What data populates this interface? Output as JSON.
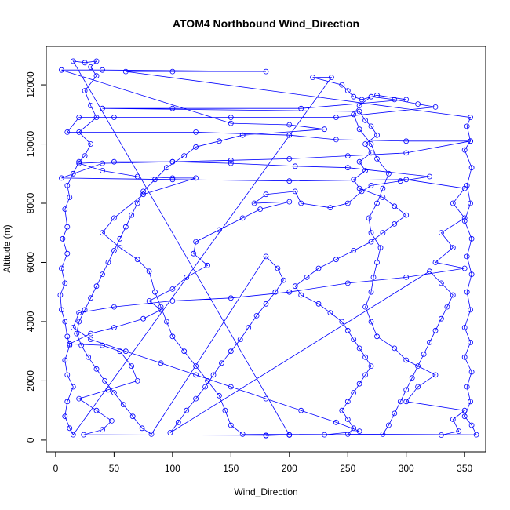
{
  "chart_data": {
    "type": "scatter",
    "title": "ATOM4 Northbound Wind_Direction",
    "xlabel": "Wind_Direction",
    "ylabel": "Altitude (m)",
    "xlim": [
      -8,
      368
    ],
    "ylim": [
      -400,
      13300
    ],
    "x_ticks": [
      0,
      50,
      100,
      150,
      200,
      250,
      300,
      350
    ],
    "y_ticks": [
      0,
      2000,
      4000,
      6000,
      8000,
      10000,
      12000
    ],
    "grid": false,
    "legend": "none",
    "series": [
      {
        "color": "#0000ff",
        "marker": "open-circle",
        "connected": true,
        "trajectory": [
          [
            180,
            150
          ],
          [
            200,
            180
          ],
          [
            180,
            160
          ],
          [
            24,
            180
          ],
          [
            40,
            350
          ],
          [
            48,
            650
          ],
          [
            35,
            1000
          ],
          [
            20,
            1400
          ],
          [
            45,
            1700
          ],
          [
            70,
            2000
          ],
          [
            65,
            2500
          ],
          [
            55,
            3000
          ],
          [
            40,
            3200
          ],
          [
            12,
            3250
          ],
          [
            30,
            3600
          ],
          [
            50,
            3800
          ],
          [
            75,
            4100
          ],
          [
            90,
            4400
          ],
          [
            80,
            4700
          ],
          [
            100,
            5100
          ],
          [
            112,
            5500
          ],
          [
            130,
            5900
          ],
          [
            118,
            6300
          ],
          [
            120,
            6700
          ],
          [
            140,
            7100
          ],
          [
            160,
            7500
          ],
          [
            175,
            7800
          ],
          [
            200,
            8050
          ],
          [
            170,
            8000
          ],
          [
            180,
            8300
          ],
          [
            205,
            8400
          ],
          [
            210,
            8000
          ],
          [
            235,
            7850
          ],
          [
            250,
            8000
          ],
          [
            262,
            8400
          ],
          [
            270,
            8600
          ],
          [
            295,
            8750
          ],
          [
            320,
            8900
          ],
          [
            250,
            9200
          ],
          [
            205,
            9250
          ],
          [
            150,
            9350
          ],
          [
            100,
            9400
          ],
          [
            50,
            9400
          ],
          [
            20,
            9350
          ],
          [
            40,
            9100
          ],
          [
            70,
            8900
          ],
          [
            100,
            8850
          ],
          [
            120,
            8850
          ],
          [
            75,
            8300
          ],
          [
            50,
            7500
          ],
          [
            40,
            7000
          ],
          [
            55,
            6500
          ],
          [
            70,
            6100
          ],
          [
            80,
            5700
          ],
          [
            85,
            5000
          ],
          [
            90,
            4500
          ],
          [
            95,
            4000
          ],
          [
            100,
            3500
          ],
          [
            110,
            3000
          ],
          [
            120,
            2500
          ],
          [
            130,
            2000
          ],
          [
            140,
            1500
          ],
          [
            145,
            1000
          ],
          [
            150,
            500
          ],
          [
            160,
            200
          ],
          [
            330,
            170
          ],
          [
            345,
            300
          ],
          [
            340,
            700
          ],
          [
            350,
            1000
          ],
          [
            300,
            1300
          ],
          [
            310,
            1800
          ],
          [
            325,
            2200
          ],
          [
            300,
            2700
          ],
          [
            290,
            3100
          ],
          [
            275,
            3500
          ],
          [
            270,
            4000
          ],
          [
            265,
            4500
          ],
          [
            270,
            5000
          ],
          [
            272,
            5500
          ],
          [
            275,
            6000
          ],
          [
            278,
            6500
          ],
          [
            270,
            7000
          ],
          [
            268,
            7500
          ],
          [
            275,
            8000
          ],
          [
            280,
            8500
          ],
          [
            285,
            9000
          ],
          [
            275,
            9500
          ],
          [
            270,
            10000
          ],
          [
            260,
            10500
          ],
          [
            255,
            11000
          ],
          [
            260,
            11300
          ],
          [
            270,
            11600
          ],
          [
            290,
            11500
          ],
          [
            310,
            11350
          ],
          [
            325,
            11250
          ],
          [
            240,
            10900
          ],
          [
            150,
            10900
          ],
          [
            50,
            10900
          ],
          [
            20,
            10900
          ],
          [
            10,
            10400
          ],
          [
            120,
            10400
          ],
          [
            200,
            10300
          ],
          [
            240,
            10150
          ],
          [
            300,
            10100
          ],
          [
            355,
            10100
          ],
          [
            300,
            9700
          ],
          [
            250,
            9600
          ],
          [
            200,
            9500
          ],
          [
            150,
            9450
          ],
          [
            100,
            9400
          ],
          [
            40,
            9350
          ],
          [
            5,
            8850
          ],
          [
            100,
            8800
          ],
          [
            200,
            8750
          ],
          [
            300,
            8800
          ],
          [
            350,
            8500
          ],
          [
            340,
            8000
          ],
          [
            350,
            7500
          ],
          [
            330,
            7000
          ],
          [
            340,
            6500
          ],
          [
            325,
            6000
          ],
          [
            350,
            5800
          ],
          [
            300,
            5500
          ],
          [
            250,
            5300
          ],
          [
            200,
            5000
          ],
          [
            150,
            4800
          ],
          [
            100,
            4700
          ],
          [
            50,
            4500
          ],
          [
            20,
            4300
          ],
          [
            15,
            3800
          ],
          [
            30,
            3400
          ],
          [
            60,
            3000
          ],
          [
            90,
            2600
          ],
          [
            120,
            2200
          ],
          [
            150,
            1800
          ],
          [
            180,
            1400
          ],
          [
            210,
            1000
          ],
          [
            240,
            600
          ],
          [
            260,
            300
          ],
          [
            230,
            180
          ],
          [
            200,
            170
          ],
          [
            15,
            12800
          ],
          [
            25,
            12750
          ],
          [
            35,
            12800
          ],
          [
            30,
            12600
          ],
          [
            35,
            12300
          ],
          [
            25,
            11800
          ],
          [
            30,
            11300
          ],
          [
            35,
            10900
          ],
          [
            20,
            10400
          ],
          [
            30,
            10000
          ],
          [
            25,
            9600
          ],
          [
            20,
            9400
          ],
          [
            15,
            9000
          ],
          [
            10,
            8600
          ],
          [
            12,
            8200
          ],
          [
            8,
            7800
          ],
          [
            10,
            7200
          ],
          [
            6,
            6800
          ],
          [
            10,
            6300
          ],
          [
            5,
            5800
          ],
          [
            8,
            5300
          ],
          [
            4,
            4900
          ],
          [
            5,
            4400
          ],
          [
            8,
            4000
          ],
          [
            10,
            3500
          ],
          [
            12,
            3200
          ],
          [
            8,
            2700
          ],
          [
            10,
            2200
          ],
          [
            15,
            1800
          ],
          [
            10,
            1300
          ],
          [
            8,
            800
          ],
          [
            12,
            400
          ],
          [
            15,
            180
          ],
          [
            236,
            12250
          ],
          [
            220,
            12250
          ],
          [
            245,
            12000
          ],
          [
            250,
            11800
          ],
          [
            255,
            11600
          ],
          [
            262,
            11500
          ],
          [
            275,
            11650
          ],
          [
            300,
            11500
          ],
          [
            210,
            11200
          ],
          [
            100,
            11200
          ],
          [
            40,
            11200
          ],
          [
            260,
            11100
          ],
          [
            265,
            10800
          ],
          [
            270,
            10600
          ],
          [
            275,
            10300
          ],
          [
            265,
            10000
          ],
          [
            270,
            9700
          ],
          [
            260,
            9400
          ],
          [
            265,
            9100
          ],
          [
            255,
            8800
          ],
          [
            260,
            8500
          ],
          [
            280,
            8200
          ],
          [
            290,
            7900
          ],
          [
            300,
            7600
          ],
          [
            290,
            7300
          ],
          [
            280,
            7000
          ],
          [
            270,
            6700
          ],
          [
            255,
            6400
          ],
          [
            240,
            6100
          ],
          [
            225,
            5800
          ],
          [
            215,
            5500
          ],
          [
            205,
            5200
          ],
          [
            210,
            4900
          ],
          [
            225,
            4600
          ],
          [
            235,
            4300
          ],
          [
            245,
            4000
          ],
          [
            250,
            3700
          ],
          [
            255,
            3400
          ],
          [
            260,
            3100
          ],
          [
            265,
            2800
          ],
          [
            270,
            2500
          ],
          [
            265,
            2200
          ],
          [
            260,
            1900
          ],
          [
            255,
            1600
          ],
          [
            250,
            1300
          ],
          [
            245,
            1000
          ],
          [
            250,
            700
          ],
          [
            255,
            400
          ],
          [
            250,
            200
          ],
          [
            360,
            180
          ],
          [
            356,
            500
          ],
          [
            350,
            800
          ],
          [
            355,
            1300
          ],
          [
            352,
            1800
          ],
          [
            356,
            2300
          ],
          [
            350,
            2800
          ],
          [
            355,
            3300
          ],
          [
            350,
            3800
          ],
          [
            355,
            4400
          ],
          [
            352,
            5000
          ],
          [
            356,
            5600
          ],
          [
            352,
            6200
          ],
          [
            356,
            6800
          ],
          [
            350,
            7400
          ],
          [
            355,
            8000
          ],
          [
            352,
            8600
          ],
          [
            356,
            9200
          ],
          [
            350,
            9800
          ],
          [
            355,
            10100
          ],
          [
            352,
            10600
          ],
          [
            355,
            10900
          ],
          [
            60,
            12450
          ],
          [
            100,
            12450
          ],
          [
            180,
            12450
          ],
          [
            40,
            12500
          ],
          [
            5,
            12500
          ],
          [
            150,
            10700
          ],
          [
            200,
            10650
          ],
          [
            230,
            10500
          ],
          [
            160,
            10300
          ],
          [
            140,
            10100
          ],
          [
            120,
            9900
          ],
          [
            110,
            9600
          ],
          [
            95,
            9200
          ],
          [
            85,
            8800
          ],
          [
            75,
            8400
          ],
          [
            70,
            8000
          ],
          [
            65,
            7600
          ],
          [
            60,
            7200
          ],
          [
            55,
            6800
          ],
          [
            50,
            6400
          ],
          [
            45,
            6000
          ],
          [
            40,
            5600
          ],
          [
            35,
            5200
          ],
          [
            30,
            4800
          ],
          [
            25,
            4400
          ],
          [
            20,
            4000
          ],
          [
            18,
            3600
          ],
          [
            22,
            3200
          ],
          [
            28,
            2800
          ],
          [
            35,
            2400
          ],
          [
            42,
            2000
          ],
          [
            50,
            1600
          ],
          [
            58,
            1200
          ],
          [
            66,
            800
          ],
          [
            74,
            400
          ],
          [
            82,
            200
          ],
          [
            180,
            6200
          ],
          [
            190,
            5800
          ],
          [
            195,
            5400
          ],
          [
            188,
            5000
          ],
          [
            180,
            4600
          ],
          [
            172,
            4200
          ],
          [
            165,
            3800
          ],
          [
            158,
            3400
          ],
          [
            150,
            3000
          ],
          [
            142,
            2600
          ],
          [
            135,
            2200
          ],
          [
            128,
            1800
          ],
          [
            120,
            1400
          ],
          [
            112,
            1000
          ],
          [
            105,
            600
          ],
          [
            98,
            250
          ],
          [
            320,
            5700
          ],
          [
            330,
            5300
          ],
          [
            340,
            4900
          ],
          [
            335,
            4500
          ],
          [
            330,
            4100
          ],
          [
            325,
            3700
          ],
          [
            320,
            3300
          ],
          [
            315,
            2900
          ],
          [
            310,
            2500
          ],
          [
            305,
            2100
          ],
          [
            300,
            1700
          ],
          [
            295,
            1300
          ],
          [
            290,
            900
          ],
          [
            285,
            500
          ],
          [
            280,
            200
          ]
        ]
      }
    ]
  }
}
